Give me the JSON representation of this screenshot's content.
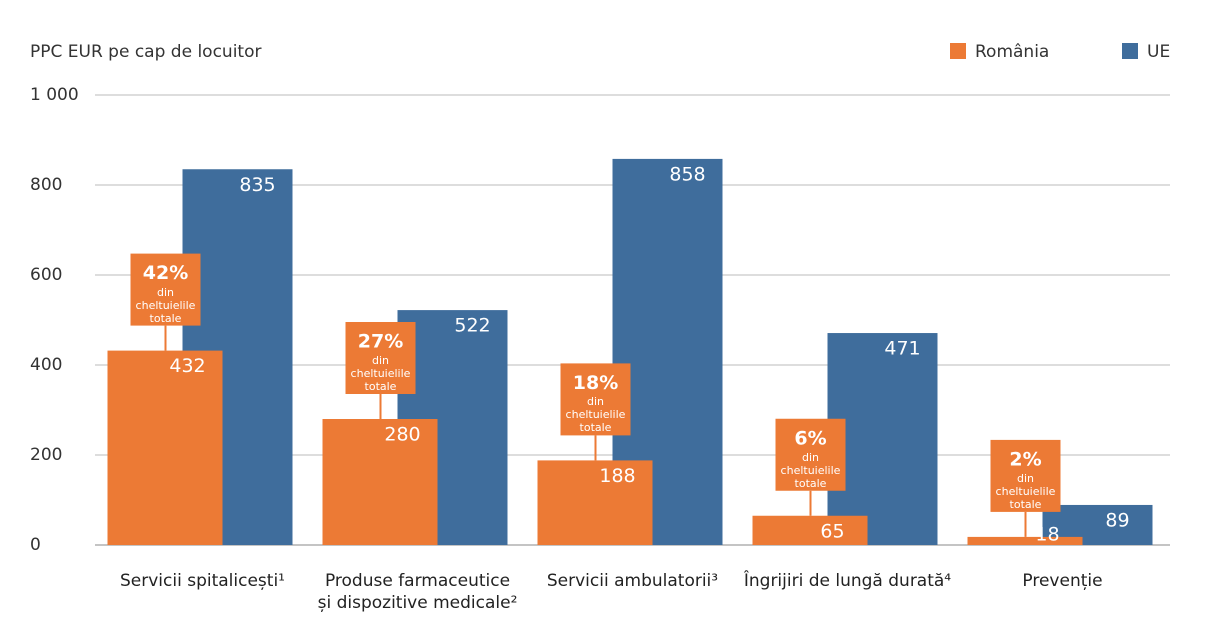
{
  "chart_data": {
    "type": "bar",
    "y_axis_title": "PPC EUR pe cap de locuitor",
    "categories": [
      "Servicii spitalicești¹",
      "Produse farmaceutice\nși dispozitive medicale²",
      "Servicii ambulatorii³",
      "Îngrijiri de lungă durată⁴",
      "Prevenție"
    ],
    "series": [
      {
        "name": "România",
        "color": "#ec7a35",
        "values": [
          432,
          280,
          188,
          65,
          18
        ]
      },
      {
        "name": "UE",
        "color": "#3f6d9c",
        "values": [
          835,
          522,
          858,
          471,
          89
        ]
      }
    ],
    "annotations": {
      "values": [
        42,
        27,
        18,
        6,
        2
      ],
      "value_labels": [
        "42%",
        "27%",
        "18%",
        "6%",
        "2%"
      ],
      "text": "din cheltuielile totale"
    },
    "ylim": [
      0,
      1000
    ],
    "yticks": [
      0,
      200,
      400,
      600,
      800,
      {
        "value": 1000,
        "label": "1 000"
      }
    ],
    "grid": true,
    "legend": "top-right"
  }
}
